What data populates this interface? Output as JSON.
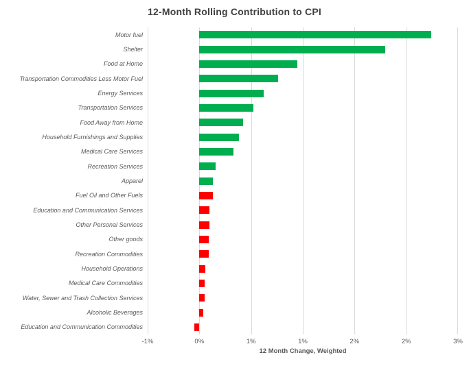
{
  "chart_data": {
    "type": "bar",
    "orientation": "horizontal",
    "title": "12-Month Rolling Contribution to CPI",
    "xlabel": "12 Month Change, Weighted",
    "ylabel": "",
    "xlim": [
      -0.5,
      2.5
    ],
    "grid": "vertical-only",
    "legend": "none",
    "x_ticks": [
      {
        "value": -0.5,
        "label": "-1%"
      },
      {
        "value": 0.0,
        "label": "0%"
      },
      {
        "value": 0.5,
        "label": "1%"
      },
      {
        "value": 1.0,
        "label": "1%"
      },
      {
        "value": 1.5,
        "label": "2%"
      },
      {
        "value": 2.0,
        "label": "2%"
      },
      {
        "value": 2.5,
        "label": "3%"
      }
    ],
    "categories": [
      "Motor fuel",
      "Shelter",
      "Food at Home",
      "Transportation Commodities Less Motor Fuel",
      "Energy Services",
      "Transportation Services",
      "Food Away from Home",
      "Household Furnishings and Supplies",
      "Medical Care Services",
      "Recreation Services",
      "Apparel",
      "Fuel Oil and Other Fuels",
      "Education and Communication Services",
      "Other Personal Services",
      "Other goods",
      "Recreation Commodities",
      "Household Operations",
      "Medical Care Commodities",
      "Water, Sewer and Trash Collection Services",
      "Alcoholic Beverages",
      "Education and Communication Commodities"
    ],
    "values": [
      2.24,
      1.8,
      0.95,
      0.76,
      0.62,
      0.52,
      0.42,
      0.38,
      0.33,
      0.16,
      0.13,
      0.13,
      0.1,
      0.1,
      0.09,
      0.09,
      0.06,
      0.05,
      0.05,
      0.04,
      -0.05
    ],
    "bar_colors": [
      "#00AE50",
      "#00AE50",
      "#00AE50",
      "#00AE50",
      "#00AE50",
      "#00AE50",
      "#00AE50",
      "#00AE50",
      "#00AE50",
      "#00AE50",
      "#00AE50",
      "#FF0000",
      "#FF0000",
      "#FF0000",
      "#FF0000",
      "#FF0000",
      "#FF0000",
      "#FF0000",
      "#FF0000",
      "#FF0000",
      "#FF0000"
    ],
    "colors": {
      "positive_green": "#00AE50",
      "negative_red": "#FF0000",
      "gridline": "#D9D9D9",
      "title_text": "#404040",
      "axis_text": "#595959",
      "background": "#FFFFFF"
    }
  }
}
